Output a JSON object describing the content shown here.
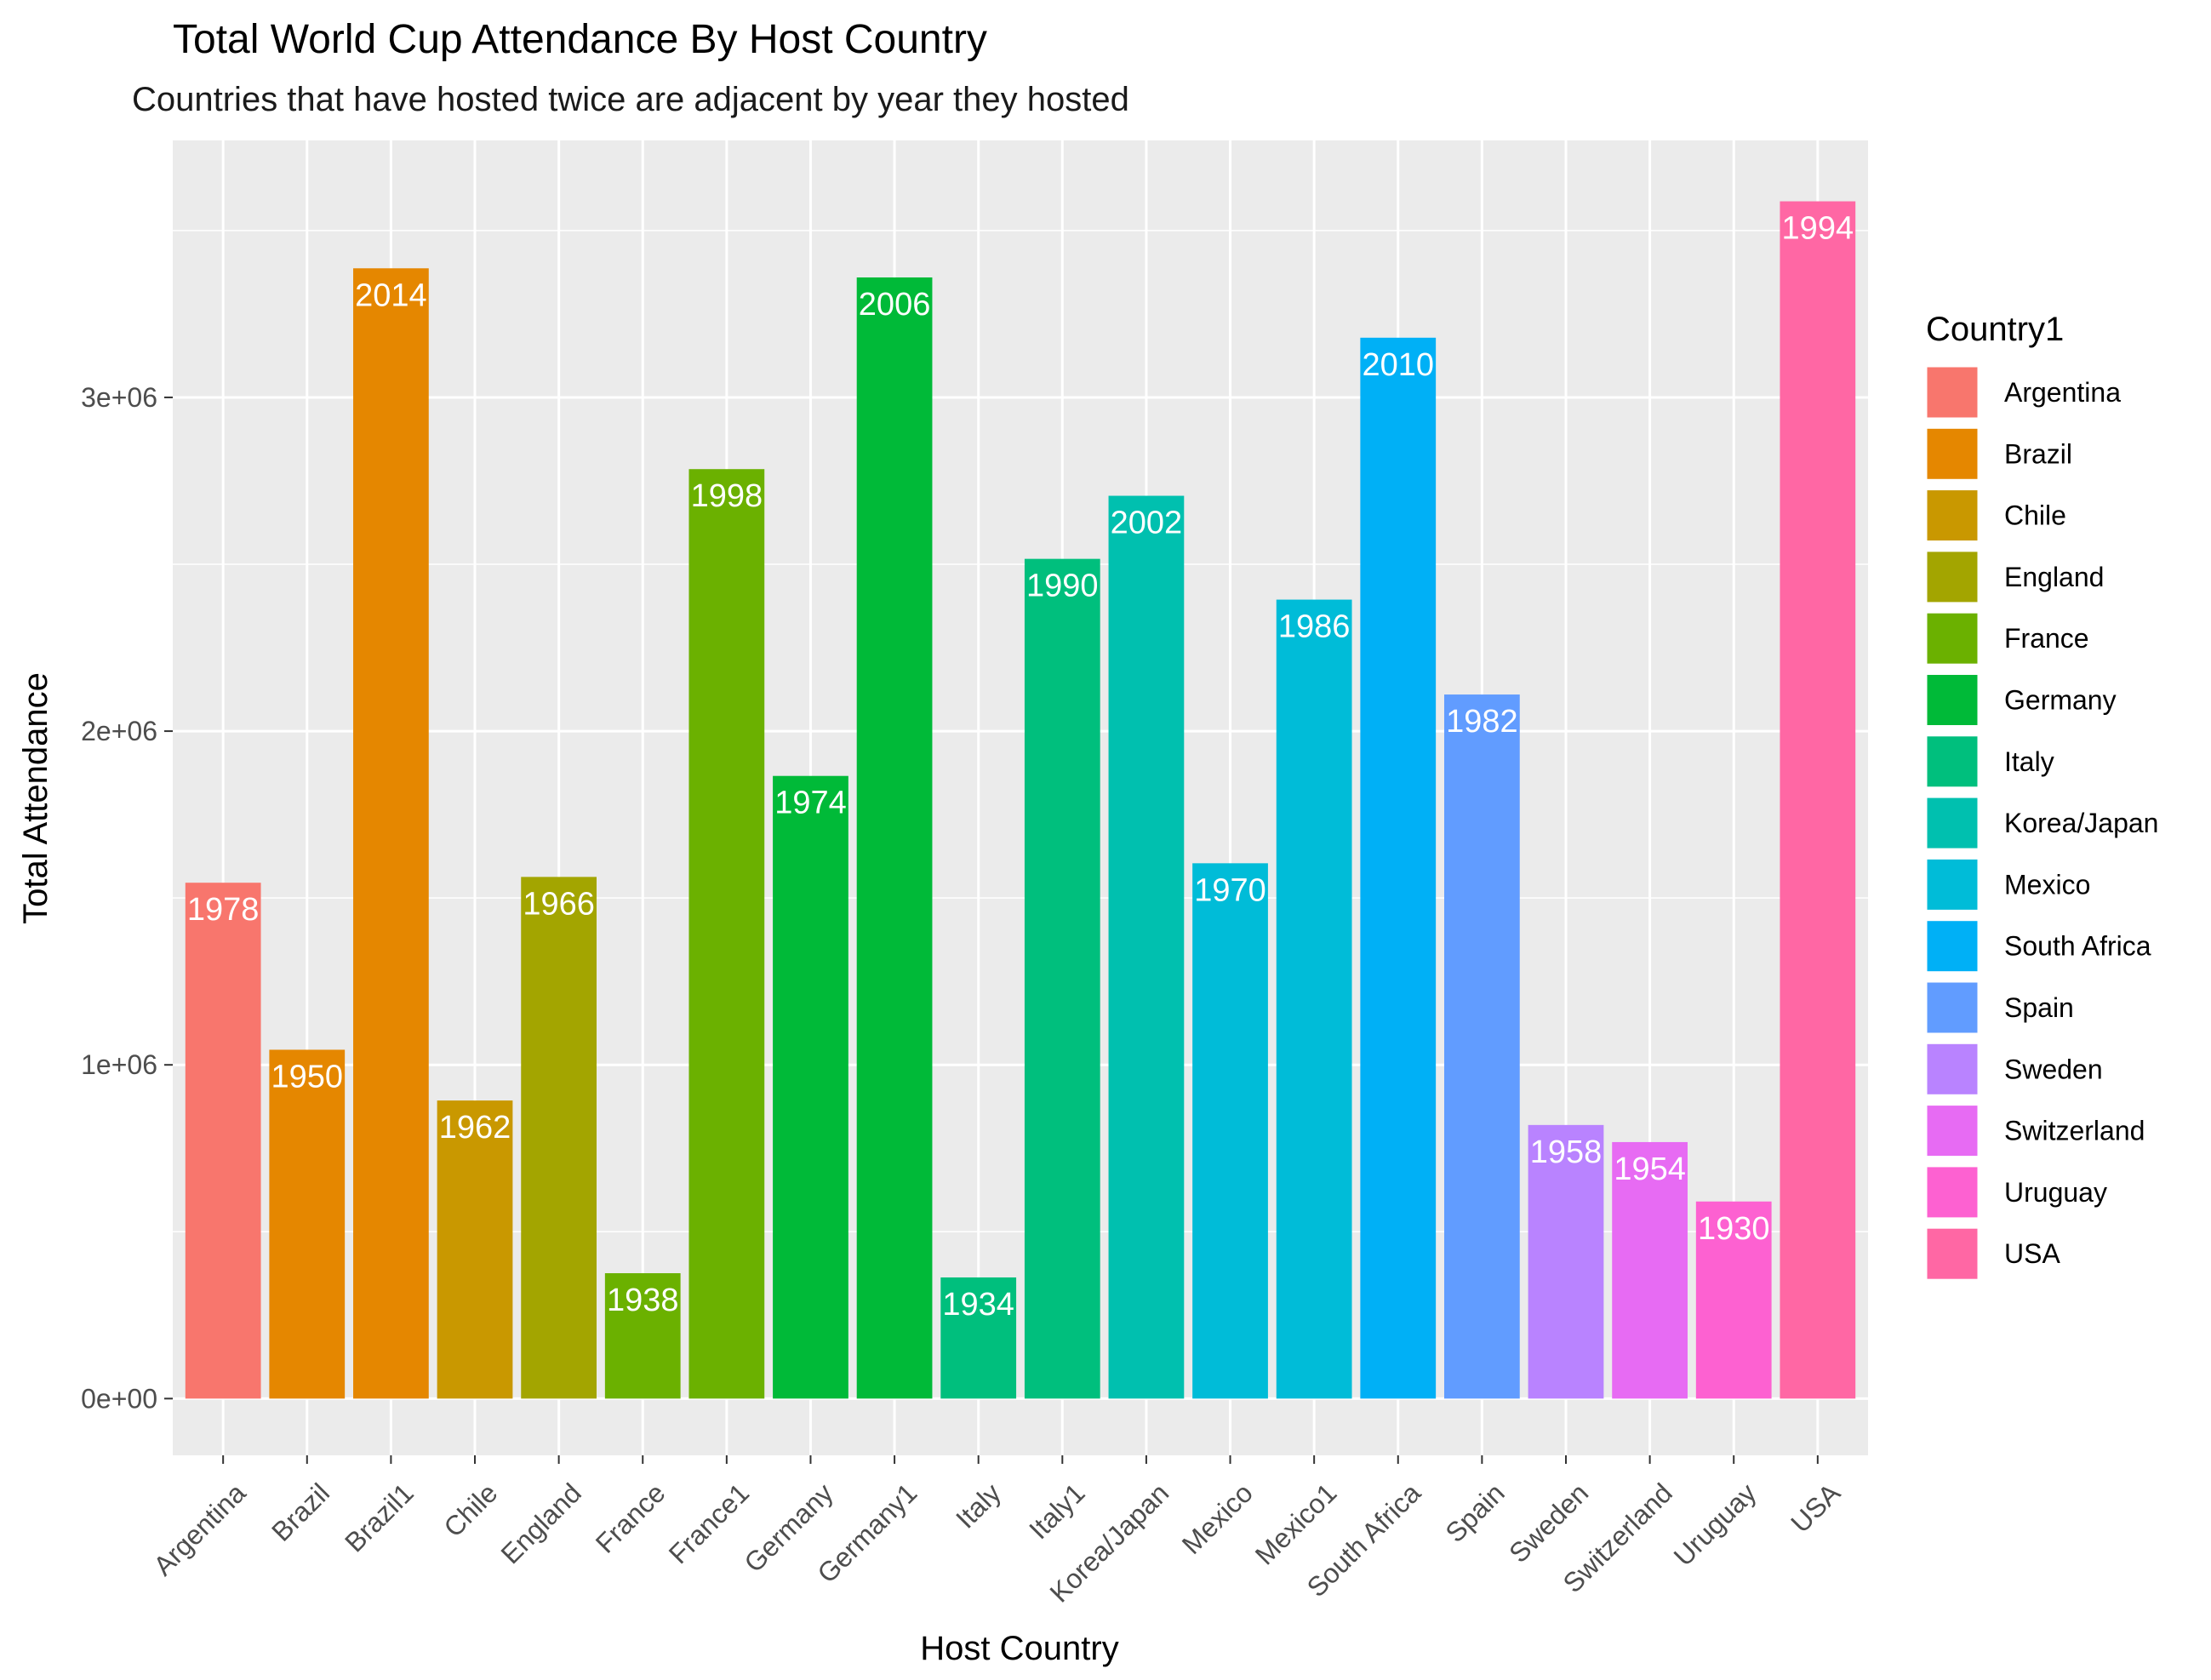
{
  "chart_data": {
    "type": "bar",
    "title": "Total World Cup Attendance By Host Country",
    "subtitle": "Countries that have hosted twice are adjacent by year they hosted",
    "xlabel": "Host Country",
    "ylabel": "Total Attendance",
    "ylim": [
      -170000,
      3770000
    ],
    "yticks": [
      0,
      1000000,
      2000000,
      3000000
    ],
    "ytick_labels": [
      "0e+00",
      "1e+06",
      "2e+06",
      "3e+06"
    ],
    "grid": true,
    "legend_position": "right",
    "legend_title": "Country1",
    "categories": [
      "Argentina",
      "Brazil",
      "Brazil1",
      "Chile",
      "England",
      "France",
      "France1",
      "Germany",
      "Germany1",
      "Italy",
      "Italy1",
      "Korea/Japan",
      "Mexico",
      "Mexico1",
      "South Africa",
      "Spain",
      "Sweden",
      "Switzerland",
      "Uruguay",
      "USA"
    ],
    "values": [
      1545791,
      1045246,
      3386810,
      893172,
      1563135,
      375700,
      2785100,
      1865753,
      3359439,
      363000,
      2516215,
      2705197,
      1604065,
      2394031,
      3178856,
      2109723,
      819810,
      768607,
      590549,
      3587538
    ],
    "bar_labels": [
      "1978",
      "1950",
      "2014",
      "1962",
      "1966",
      "1938",
      "1998",
      "1974",
      "2006",
      "1934",
      "1990",
      "2002",
      "1970",
      "1986",
      "2010",
      "1982",
      "1958",
      "1954",
      "1930",
      "1994"
    ],
    "fill_group": [
      "Argentina",
      "Brazil",
      "Brazil",
      "Chile",
      "England",
      "France",
      "France",
      "Germany",
      "Germany",
      "Italy",
      "Italy",
      "Korea/Japan",
      "Mexico",
      "Mexico",
      "South Africa",
      "Spain",
      "Sweden",
      "Switzerland",
      "Uruguay",
      "USA"
    ],
    "legend": [
      {
        "name": "Argentina",
        "color": "#F8766D"
      },
      {
        "name": "Brazil",
        "color": "#E58700"
      },
      {
        "name": "Chile",
        "color": "#C99800"
      },
      {
        "name": "England",
        "color": "#A3A500"
      },
      {
        "name": "France",
        "color": "#6BB100"
      },
      {
        "name": "Germany",
        "color": "#00BA38"
      },
      {
        "name": "Italy",
        "color": "#00BF7D"
      },
      {
        "name": "Korea/Japan",
        "color": "#00C0AF"
      },
      {
        "name": "Mexico",
        "color": "#00BCD8"
      },
      {
        "name": "South Africa",
        "color": "#00B0F6"
      },
      {
        "name": "Spain",
        "color": "#619CFF"
      },
      {
        "name": "Sweden",
        "color": "#B983FF"
      },
      {
        "name": "Switzerland",
        "color": "#E76BF3"
      },
      {
        "name": "Uruguay",
        "color": "#FD61D1"
      },
      {
        "name": "USA",
        "color": "#FF67A4"
      }
    ]
  }
}
